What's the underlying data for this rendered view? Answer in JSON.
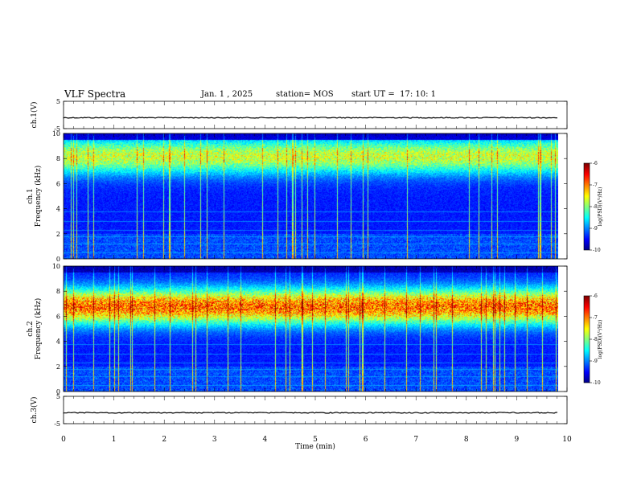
{
  "header": {
    "title": "VLF Spectra",
    "date": "Jan. 1 , 2025",
    "station": "station= MOS",
    "start": "start UT =  17: 10: 1"
  },
  "chart_data": {
    "type": "heatmap",
    "title": "VLF Spectra",
    "panels": [
      {
        "name": "ch.1(V)",
        "ylabel": "ch.1(V)",
        "ylim": [
          -5,
          5
        ],
        "yticks": [
          "5",
          "-5"
        ],
        "kind": "timeseries",
        "baseline": -1.0
      },
      {
        "name": "ch.1",
        "ylabel": "ch.1\nFrequency (kHz)",
        "ylim": [
          0,
          10
        ],
        "yticks": [
          "0",
          "2",
          "4",
          "6",
          "8",
          "10"
        ],
        "kind": "spectrogram",
        "colorbar": {
          "label": "log(PSD)(V²/Hz)",
          "range": [
            -10,
            -6
          ],
          "ticks": [
            "-6",
            "-7",
            "-8",
            "-9",
            "-10"
          ]
        }
      },
      {
        "name": "ch.2",
        "ylabel": "ch.2\nFrequency (kHz)",
        "ylim": [
          0,
          10
        ],
        "yticks": [
          "0",
          "2",
          "4",
          "6",
          "8",
          "10"
        ],
        "kind": "spectrogram",
        "colorbar": {
          "label": "log(PSD)(V²/Hz)",
          "range": [
            -10,
            -6
          ],
          "ticks": [
            "-6",
            "-7",
            "-8",
            "-9",
            "-10"
          ]
        }
      },
      {
        "name": "ch.3(V)",
        "ylabel": "ch.3(V)",
        "ylim": [
          -5,
          5
        ],
        "yticks": [
          "5",
          "-5"
        ],
        "kind": "timeseries",
        "baseline": -1.0
      }
    ],
    "xlabel": "Time (min)",
    "xlim": [
      0,
      10
    ],
    "xticks": [
      "0",
      "1",
      "2",
      "3",
      "4",
      "5",
      "6",
      "7",
      "8",
      "9",
      "10"
    ],
    "data_end_min": 9.82
  }
}
